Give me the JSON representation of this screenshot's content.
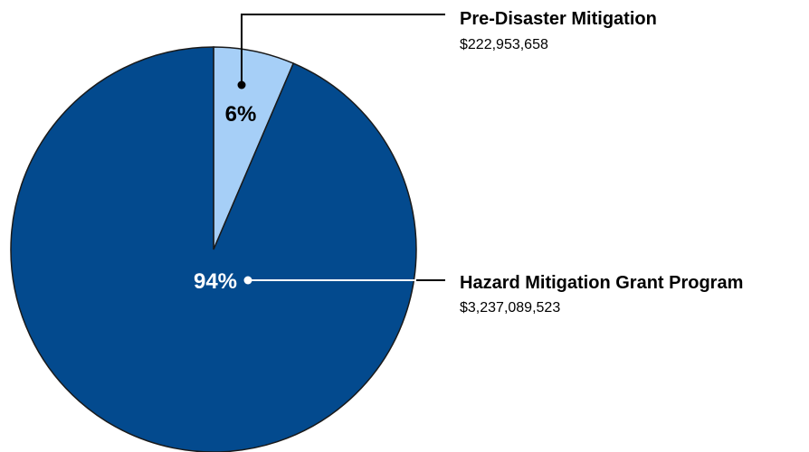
{
  "chart_data": {
    "type": "pie",
    "title": "",
    "slices": [
      {
        "label": "Pre-Disaster Mitigation",
        "amount_text": "$222,953,658",
        "value": 222953658,
        "percent_label": "6%",
        "color": "#a6cff7",
        "label_color": "#000000"
      },
      {
        "label": "Hazard Mitigation Grant Program",
        "amount_text": "$3,237,089,523",
        "value": 3237089523,
        "percent_label": "94%",
        "color": "#034a8e",
        "label_color": "#ffffff"
      }
    ],
    "legend_placement": "right"
  }
}
